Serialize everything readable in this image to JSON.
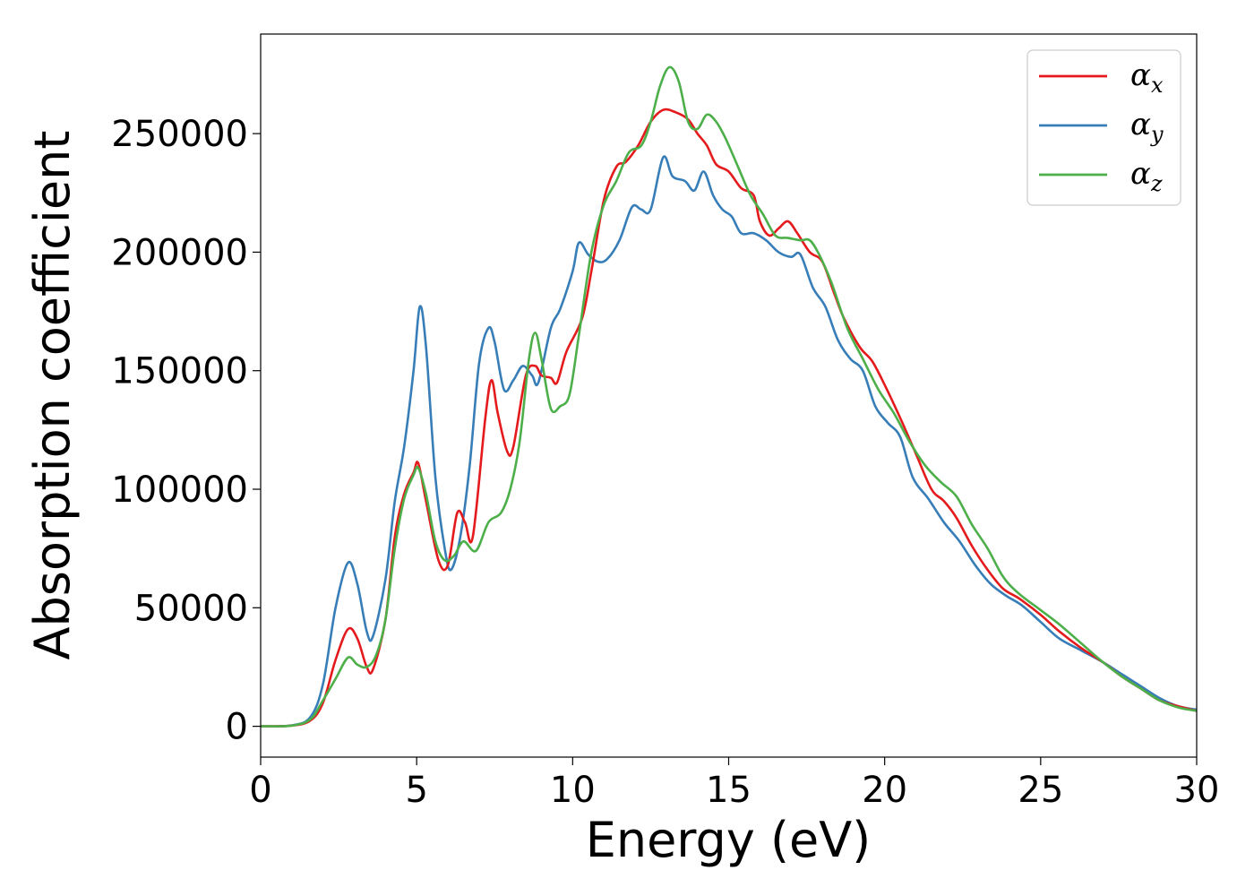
{
  "chart_data": {
    "type": "line",
    "xlabel": "Energy (eV)",
    "ylabel": "Absorption coefficient",
    "xlim": [
      0,
      30
    ],
    "ylim": [
      -13000,
      292000
    ],
    "xticks": [
      "0",
      "5",
      "10",
      "15",
      "20",
      "25",
      "30"
    ],
    "yticks": [
      "0",
      "50000",
      "100000",
      "150000",
      "200000",
      "250000"
    ],
    "grid": false,
    "legend_position": "top-right",
    "series": [
      {
        "name": "α",
        "subscript": "x",
        "color": "#e41a1c",
        "points": [
          [
            0,
            0
          ],
          [
            1,
            300
          ],
          [
            1.6,
            2500
          ],
          [
            2,
            10000
          ],
          [
            2.4,
            28000
          ],
          [
            2.8,
            41000
          ],
          [
            3.1,
            37000
          ],
          [
            3.4,
            25000
          ],
          [
            3.6,
            24000
          ],
          [
            4,
            45000
          ],
          [
            4.3,
            80000
          ],
          [
            4.6,
            98000
          ],
          [
            4.9,
            107000
          ],
          [
            5.05,
            111000
          ],
          [
            5.3,
            95000
          ],
          [
            5.7,
            70000
          ],
          [
            6,
            68000
          ],
          [
            6.3,
            90000
          ],
          [
            6.55,
            86000
          ],
          [
            6.8,
            80000
          ],
          [
            7.2,
            130000
          ],
          [
            7.4,
            146000
          ],
          [
            7.6,
            132000
          ],
          [
            7.9,
            116000
          ],
          [
            8.1,
            118000
          ],
          [
            8.5,
            148000
          ],
          [
            8.8,
            152000
          ],
          [
            9,
            148000
          ],
          [
            9.3,
            147000
          ],
          [
            9.5,
            145000
          ],
          [
            9.8,
            158000
          ],
          [
            10.3,
            172000
          ],
          [
            10.6,
            192000
          ],
          [
            11,
            222000
          ],
          [
            11.4,
            236000
          ],
          [
            11.7,
            238000
          ],
          [
            12.1,
            245000
          ],
          [
            12.5,
            255000
          ],
          [
            12.9,
            260000
          ],
          [
            13.3,
            259000
          ],
          [
            13.7,
            256000
          ],
          [
            14,
            250000
          ],
          [
            14.3,
            245000
          ],
          [
            14.6,
            237000
          ],
          [
            15,
            234000
          ],
          [
            15.4,
            227000
          ],
          [
            15.8,
            224000
          ],
          [
            16,
            213000
          ],
          [
            16.3,
            207000
          ],
          [
            16.6,
            210000
          ],
          [
            16.9,
            213000
          ],
          [
            17.2,
            208000
          ],
          [
            17.6,
            200000
          ],
          [
            18,
            196000
          ],
          [
            18.4,
            182000
          ],
          [
            18.7,
            172000
          ],
          [
            19.2,
            160000
          ],
          [
            19.6,
            154000
          ],
          [
            20,
            144000
          ],
          [
            20.5,
            130000
          ],
          [
            21,
            115000
          ],
          [
            21.5,
            100000
          ],
          [
            21.9,
            95000
          ],
          [
            22.3,
            88000
          ],
          [
            22.8,
            76000
          ],
          [
            23.3,
            66000
          ],
          [
            23.8,
            58000
          ],
          [
            24.3,
            54000
          ],
          [
            25,
            47000
          ],
          [
            25.6,
            40000
          ],
          [
            26.3,
            33000
          ],
          [
            27,
            27000
          ],
          [
            27.6,
            21000
          ],
          [
            28.2,
            16000
          ],
          [
            28.8,
            11000
          ],
          [
            29.4,
            8500
          ],
          [
            30,
            6500
          ]
        ]
      },
      {
        "name": "α",
        "subscript": "y",
        "color": "#377eb8",
        "points": [
          [
            0,
            0
          ],
          [
            1,
            400
          ],
          [
            1.6,
            4000
          ],
          [
            2,
            18000
          ],
          [
            2.4,
            50000
          ],
          [
            2.8,
            69000
          ],
          [
            3.1,
            60000
          ],
          [
            3.4,
            40000
          ],
          [
            3.6,
            38000
          ],
          [
            4,
            62000
          ],
          [
            4.3,
            95000
          ],
          [
            4.6,
            118000
          ],
          [
            4.9,
            150000
          ],
          [
            5.1,
            177000
          ],
          [
            5.3,
            160000
          ],
          [
            5.6,
            105000
          ],
          [
            5.9,
            75000
          ],
          [
            6.1,
            66000
          ],
          [
            6.4,
            80000
          ],
          [
            6.7,
            110000
          ],
          [
            7,
            153000
          ],
          [
            7.3,
            168000
          ],
          [
            7.5,
            162000
          ],
          [
            7.8,
            142000
          ],
          [
            8.1,
            146000
          ],
          [
            8.4,
            152000
          ],
          [
            8.7,
            148000
          ],
          [
            8.9,
            145000
          ],
          [
            9.3,
            168000
          ],
          [
            9.6,
            176000
          ],
          [
            10,
            192000
          ],
          [
            10.2,
            204000
          ],
          [
            10.5,
            199000
          ],
          [
            10.8,
            196000
          ],
          [
            11.1,
            197000
          ],
          [
            11.5,
            205000
          ],
          [
            11.9,
            219000
          ],
          [
            12.2,
            218000
          ],
          [
            12.5,
            218000
          ],
          [
            12.9,
            240000
          ],
          [
            13.2,
            232000
          ],
          [
            13.6,
            230000
          ],
          [
            13.9,
            226000
          ],
          [
            14.2,
            234000
          ],
          [
            14.5,
            224000
          ],
          [
            14.8,
            218000
          ],
          [
            15.1,
            215000
          ],
          [
            15.4,
            208000
          ],
          [
            15.8,
            208000
          ],
          [
            16.2,
            205000
          ],
          [
            16.6,
            200000
          ],
          [
            17,
            198000
          ],
          [
            17.3,
            199000
          ],
          [
            17.7,
            185000
          ],
          [
            18.1,
            177000
          ],
          [
            18.5,
            163000
          ],
          [
            18.9,
            155000
          ],
          [
            19.3,
            150000
          ],
          [
            19.7,
            135000
          ],
          [
            20.1,
            128000
          ],
          [
            20.5,
            122000
          ],
          [
            20.9,
            105000
          ],
          [
            21.4,
            96000
          ],
          [
            21.9,
            86000
          ],
          [
            22.4,
            78000
          ],
          [
            22.9,
            68000
          ],
          [
            23.4,
            60000
          ],
          [
            23.9,
            55000
          ],
          [
            24.4,
            51000
          ],
          [
            25,
            44000
          ],
          [
            25.6,
            37000
          ],
          [
            26.3,
            32000
          ],
          [
            27,
            27000
          ],
          [
            27.6,
            22000
          ],
          [
            28.2,
            17000
          ],
          [
            28.8,
            12000
          ],
          [
            29.4,
            8500
          ],
          [
            30,
            7000
          ]
        ]
      },
      {
        "name": "α",
        "subscript": "z",
        "color": "#4daf4a",
        "points": [
          [
            0,
            0
          ],
          [
            1,
            300
          ],
          [
            1.6,
            3000
          ],
          [
            2,
            11000
          ],
          [
            2.4,
            20000
          ],
          [
            2.8,
            29000
          ],
          [
            3.1,
            26000
          ],
          [
            3.4,
            25000
          ],
          [
            3.7,
            30000
          ],
          [
            4,
            45000
          ],
          [
            4.3,
            75000
          ],
          [
            4.6,
            96000
          ],
          [
            4.9,
            106000
          ],
          [
            5.05,
            109000
          ],
          [
            5.3,
            98000
          ],
          [
            5.6,
            78000
          ],
          [
            5.9,
            70000
          ],
          [
            6.2,
            72000
          ],
          [
            6.5,
            78000
          ],
          [
            6.9,
            74000
          ],
          [
            7.3,
            86000
          ],
          [
            7.7,
            90000
          ],
          [
            8,
            100000
          ],
          [
            8.3,
            120000
          ],
          [
            8.6,
            155000
          ],
          [
            8.8,
            166000
          ],
          [
            9,
            155000
          ],
          [
            9.3,
            134000
          ],
          [
            9.6,
            135000
          ],
          [
            9.9,
            140000
          ],
          [
            10.2,
            165000
          ],
          [
            10.6,
            200000
          ],
          [
            11,
            220000
          ],
          [
            11.4,
            230000
          ],
          [
            11.8,
            242000
          ],
          [
            12.2,
            245000
          ],
          [
            12.5,
            255000
          ],
          [
            12.8,
            270000
          ],
          [
            13.1,
            278000
          ],
          [
            13.4,
            272000
          ],
          [
            13.7,
            255000
          ],
          [
            14,
            252000
          ],
          [
            14.3,
            258000
          ],
          [
            14.6,
            255000
          ],
          [
            14.9,
            248000
          ],
          [
            15.3,
            236000
          ],
          [
            15.7,
            224000
          ],
          [
            16.1,
            216000
          ],
          [
            16.5,
            207000
          ],
          [
            16.9,
            206000
          ],
          [
            17.3,
            205000
          ],
          [
            17.6,
            205000
          ],
          [
            17.9,
            199000
          ],
          [
            18.3,
            187000
          ],
          [
            18.8,
            168000
          ],
          [
            19.3,
            155000
          ],
          [
            19.8,
            142000
          ],
          [
            20.3,
            132000
          ],
          [
            20.8,
            120000
          ],
          [
            21.3,
            110000
          ],
          [
            21.8,
            103000
          ],
          [
            22.3,
            97000
          ],
          [
            22.8,
            85000
          ],
          [
            23.3,
            75000
          ],
          [
            23.8,
            63000
          ],
          [
            24.3,
            56000
          ],
          [
            25,
            49000
          ],
          [
            25.6,
            43000
          ],
          [
            26.3,
            35000
          ],
          [
            27,
            27000
          ],
          [
            27.6,
            21000
          ],
          [
            28.2,
            16000
          ],
          [
            28.8,
            11000
          ],
          [
            29.4,
            8000
          ],
          [
            30,
            6500
          ]
        ]
      }
    ]
  }
}
